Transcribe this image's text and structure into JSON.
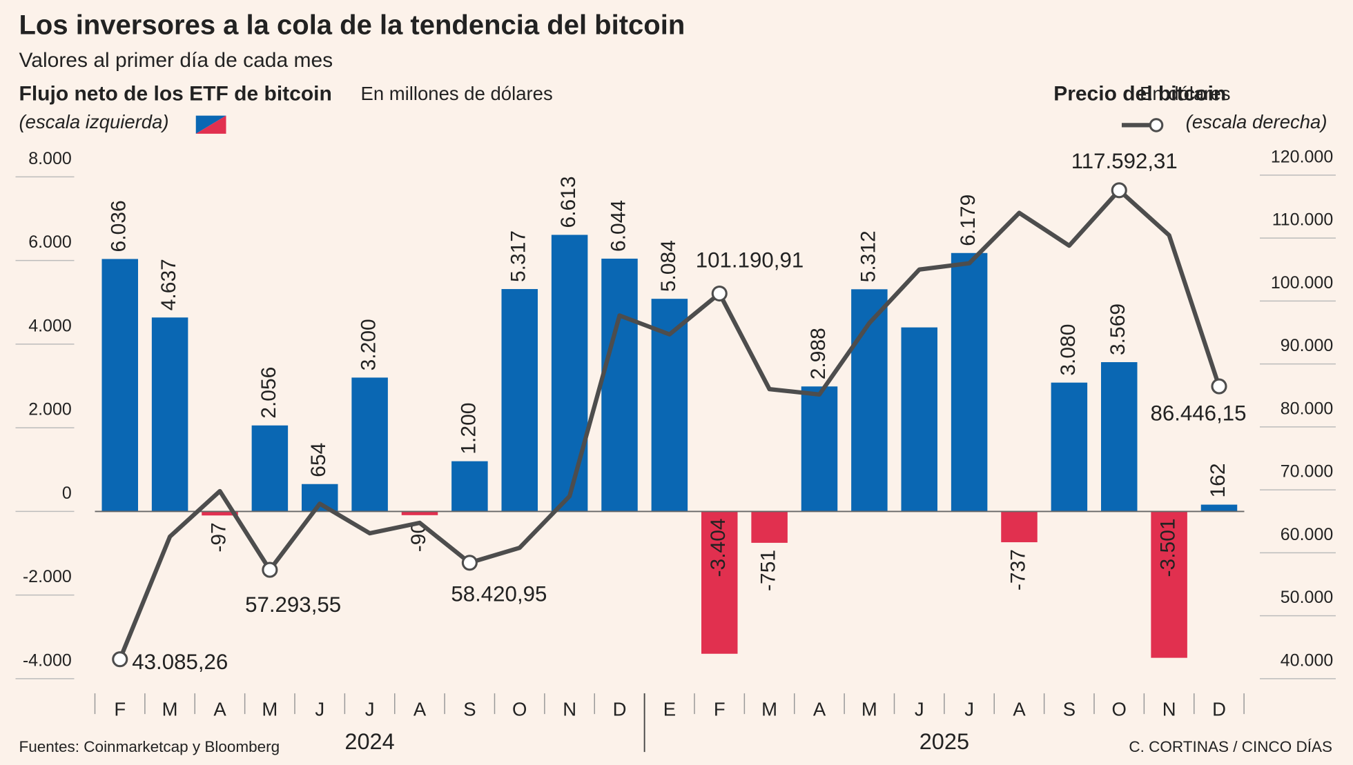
{
  "chart_data": {
    "type": "bar-line",
    "title": "Los inversores a la cola de la tendencia del bitcoin",
    "subtitle": "Valores al primer día de cada mes",
    "categories": [
      "F",
      "M",
      "A",
      "M",
      "J",
      "J",
      "A",
      "S",
      "O",
      "N",
      "D",
      "E",
      "F",
      "M",
      "A",
      "M",
      "J",
      "J",
      "A",
      "S",
      "O",
      "N",
      "D"
    ],
    "years": [
      "2024",
      "2025"
    ],
    "series": [
      {
        "name": "Flujo neto de los ETF de bitcoin",
        "unit": "En millones de dólares",
        "note": "(escala izquierda)",
        "type": "bar",
        "color": "#0a67b3",
        "negative_color": "#e1304f",
        "values": [
          6036,
          4637,
          -97,
          2056,
          654,
          3200,
          -90,
          1200,
          5317,
          6613,
          6044,
          5084,
          -3404,
          -751,
          2988,
          5312,
          4400,
          6179,
          -737,
          3080,
          3569,
          -3501,
          162
        ],
        "value_labels": [
          "6.036",
          "4.637",
          "-97",
          "2.056",
          "654",
          "3.200",
          "-90",
          "1.200",
          "5.317",
          "6.613",
          "6.044",
          "5.084",
          "-3.404",
          "-751",
          "2.988",
          "5.312",
          null,
          "6.179",
          "-737",
          "3.080",
          "3.569",
          "-3.501",
          "162"
        ]
      },
      {
        "name": "Precio del bitcoin",
        "unit": "En dólares",
        "note": "(escala derecha)",
        "type": "line",
        "axis": "y2",
        "color": "#4d4d4d",
        "values": [
          43085.26,
          62570,
          69800,
          57293.55,
          67800,
          63100,
          64760,
          58420.95,
          60800,
          69000,
          97700,
          94700,
          101190.91,
          86000,
          85150,
          96500,
          105000,
          106000,
          114000,
          108800,
          117592.31,
          110450,
          86446.15
        ],
        "value_labels": [
          "43.085,26",
          null,
          null,
          "57.293,55",
          null,
          null,
          null,
          "58.420,95",
          null,
          null,
          null,
          null,
          "101.190,91",
          null,
          null,
          null,
          null,
          null,
          null,
          null,
          "117.592,31",
          null,
          "86.446,15"
        ]
      }
    ],
    "ylim": [
      -4000,
      8000
    ],
    "yticks": [
      {
        "value": -4000,
        "label": "-4.000"
      },
      {
        "value": -2000,
        "label": "-2.000"
      },
      0,
      {
        "value": 2000,
        "label": "2.000"
      },
      {
        "value": 4000,
        "label": "4.000"
      },
      {
        "value": 6000,
        "label": "6.000"
      },
      {
        "value": 8000,
        "label": "8.000"
      }
    ],
    "y2lim": [
      40000,
      120000
    ],
    "y2ticks": [
      {
        "value": 40000,
        "label": "40.000"
      },
      {
        "value": 50000,
        "label": "50.000"
      },
      {
        "value": 60000,
        "label": "60.000"
      },
      {
        "value": 70000,
        "label": "70.000"
      },
      {
        "value": 80000,
        "label": "80.000"
      },
      {
        "value": 90000,
        "label": "90.000"
      },
      {
        "value": 100000,
        "label": "100.000"
      },
      {
        "value": 110000,
        "label": "110.000"
      },
      {
        "value": 120000,
        "label": "120.000"
      }
    ],
    "source": "Fuentes: Coinmarketcap y Bloomberg",
    "credit": "C. CORTINAS / CINCO DÍAS"
  }
}
